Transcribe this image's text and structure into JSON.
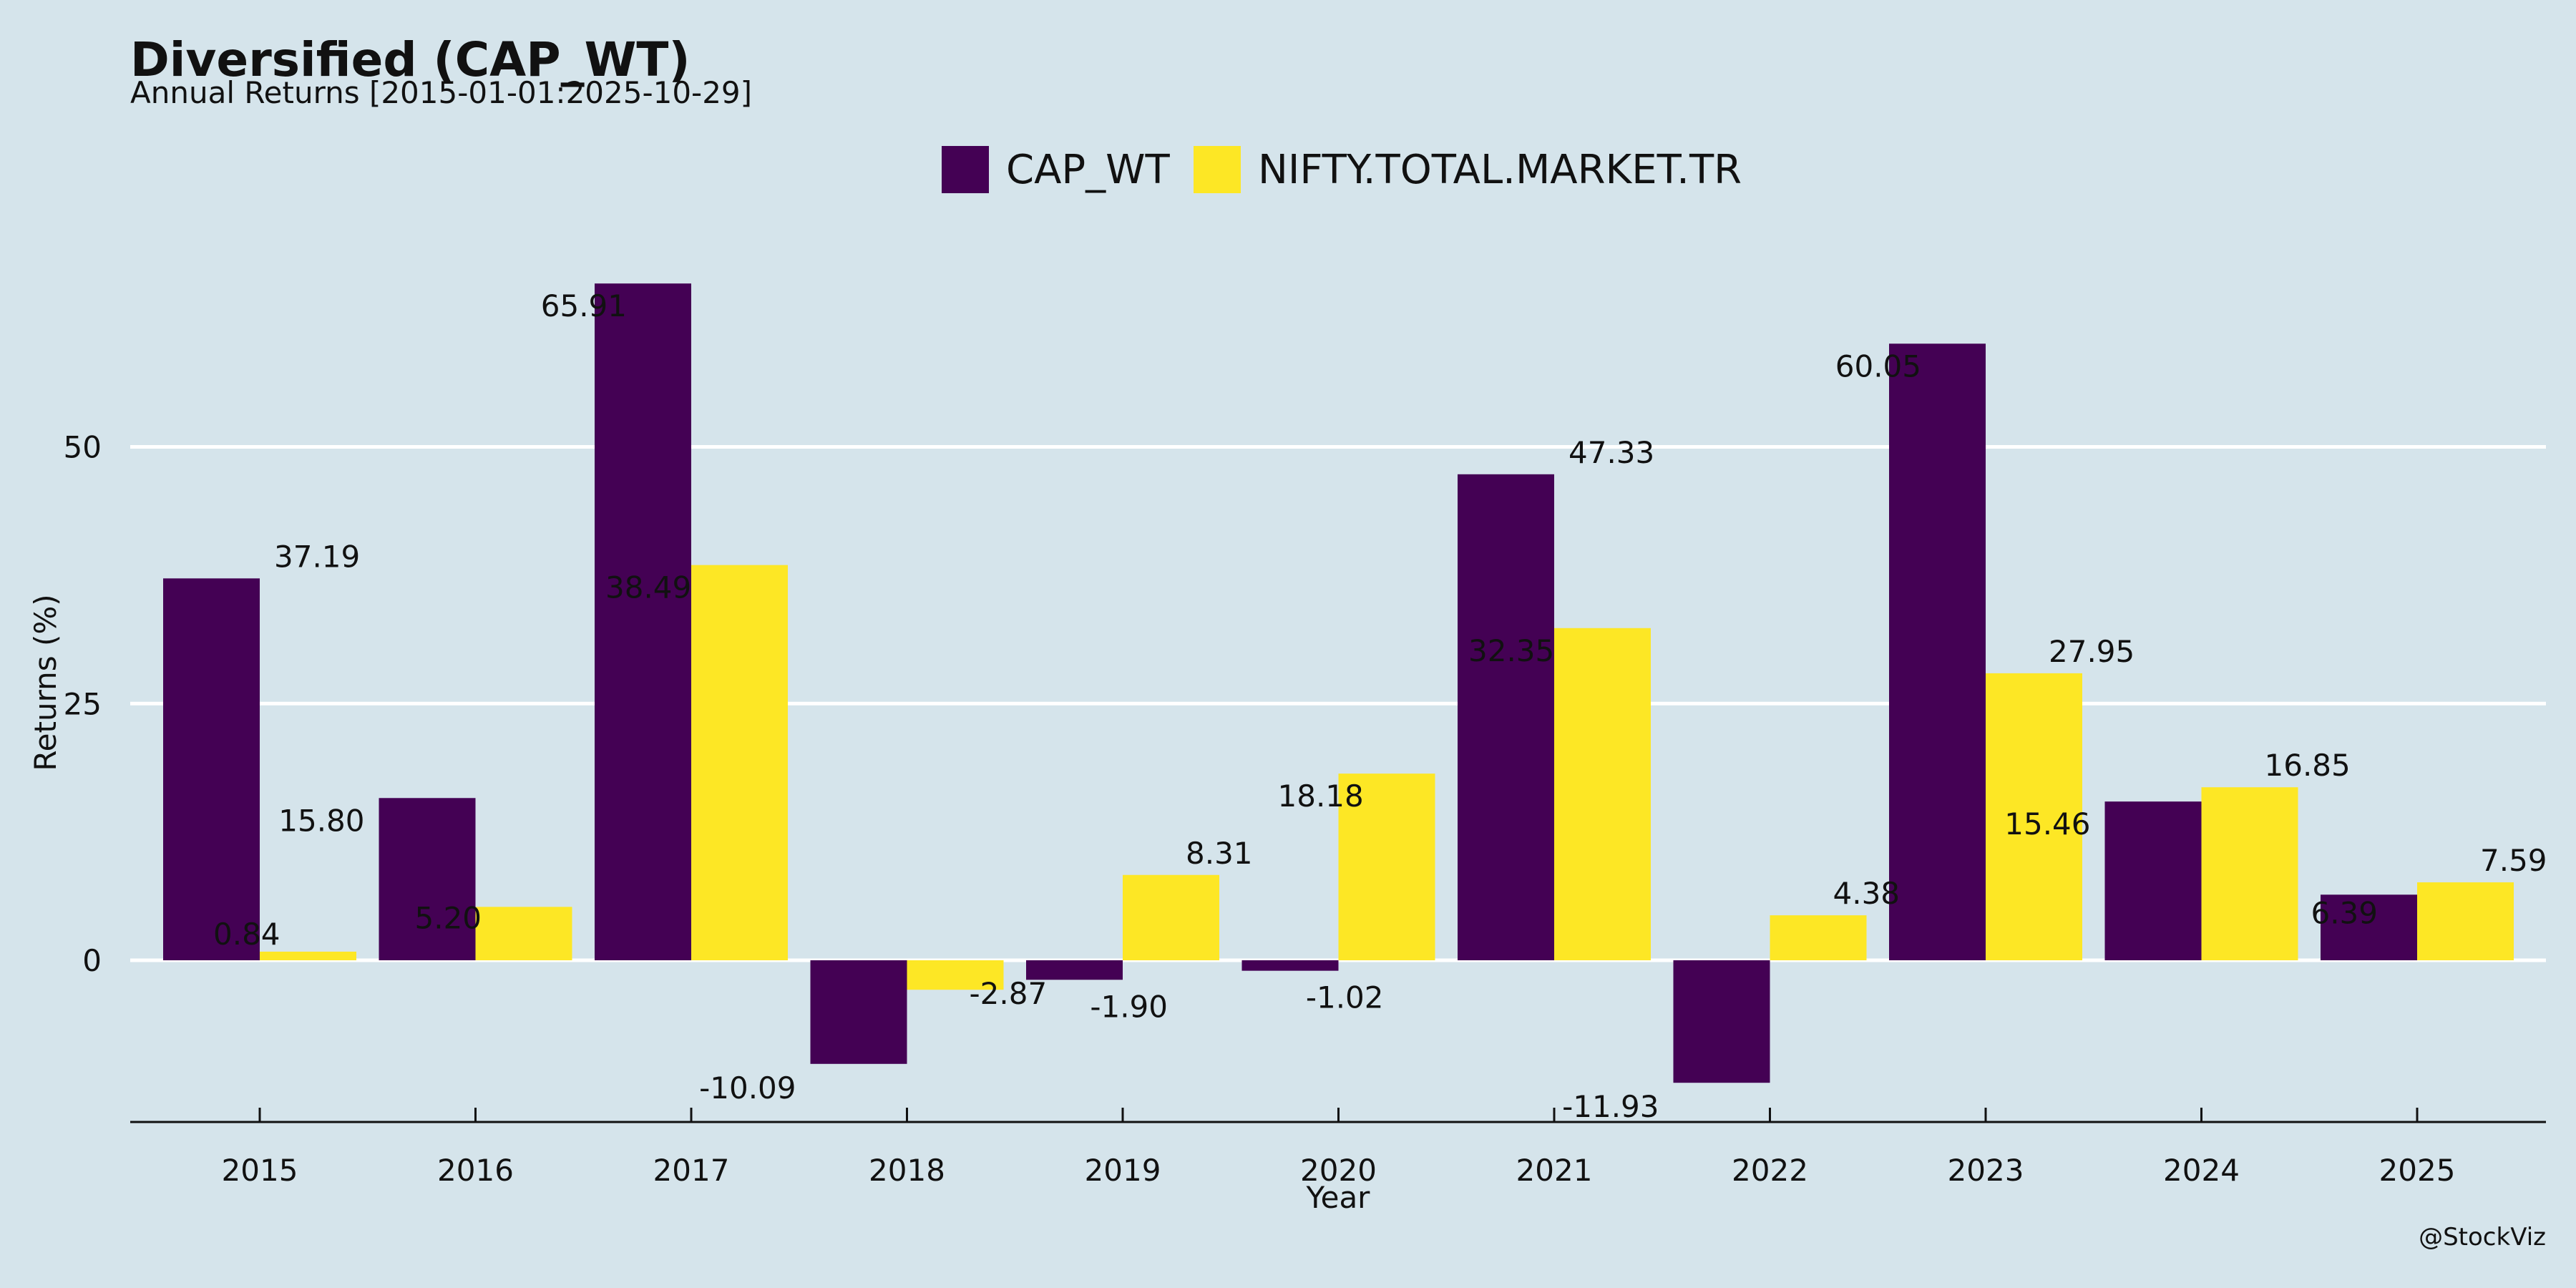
{
  "title": "Diversified (CAP_WT)",
  "subtitle": "Annual Returns [2015-01-01:2025-10-29]",
  "credit": "@StockViz",
  "colors": {
    "background": "#d5e4eb",
    "series_1": "#440154",
    "series_2": "#fde725",
    "grid": "#ffffff",
    "axis": "#111111"
  },
  "chart_data": {
    "type": "bar",
    "categories": [
      "2015",
      "2016",
      "2017",
      "2018",
      "2019",
      "2020",
      "2021",
      "2022",
      "2023",
      "2024",
      "2025"
    ],
    "series": [
      {
        "name": "CAP_WT",
        "values": [
          37.19,
          15.8,
          65.91,
          -10.09,
          -1.9,
          -1.02,
          47.33,
          -11.93,
          60.05,
          15.46,
          6.39
        ],
        "labels": [
          "37.19",
          "15.80",
          "65.91",
          "-10.09",
          "-1.90",
          "-1.02",
          "47.33",
          "-11.93",
          "60.05",
          "15.46",
          "6.39"
        ]
      },
      {
        "name": "NIFTY.TOTAL.MARKET.TR",
        "values": [
          0.84,
          5.2,
          38.49,
          -2.87,
          8.31,
          18.18,
          32.35,
          4.38,
          27.95,
          16.85,
          7.59
        ],
        "labels": [
          "0.84",
          "5.20",
          "38.49",
          "-2.87",
          "8.31",
          "18.18",
          "32.35",
          "4.38",
          "27.95",
          "16.85",
          "7.59"
        ]
      }
    ],
    "xlabel": "Year",
    "ylabel": "Returns (%)",
    "ylim": [
      -16,
      70
    ],
    "yticks": [
      0,
      25,
      50
    ],
    "ytick_labels": [
      "0",
      "25",
      "50"
    ],
    "grid": "horizontal",
    "legend_position": "top-center"
  }
}
